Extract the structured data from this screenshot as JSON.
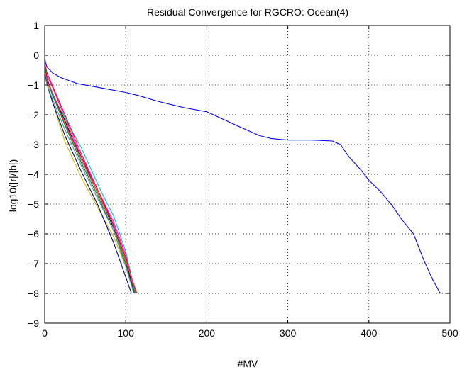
{
  "chart_data": {
    "type": "line",
    "title": "Residual Convergence for RGCRO: Ocean(4)",
    "xlabel": "#MV",
    "ylabel": "log10(|r|/|b|)",
    "xlim": [
      0,
      500
    ],
    "ylim": [
      -9,
      1
    ],
    "xticks": [
      0,
      100,
      200,
      300,
      400,
      500
    ],
    "yticks": [
      1,
      0,
      -1,
      -2,
      -3,
      -4,
      -5,
      -6,
      -7,
      -8,
      -9
    ],
    "xtick_labels": [
      "0",
      "100",
      "200",
      "300",
      "400",
      "500"
    ],
    "ytick_labels": [
      "1",
      "0",
      "−1",
      "−2",
      "−3",
      "−4",
      "−5",
      "−6",
      "−7",
      "−8",
      "−9"
    ],
    "grid": true,
    "grid_style": "dotted",
    "series": [
      {
        "color": "#0000ff",
        "x": [
          0,
          1,
          3,
          10,
          20,
          40,
          60,
          80,
          100,
          115,
          140,
          170,
          200,
          240,
          265,
          280,
          300,
          330,
          355,
          365,
          375,
          390,
          400,
          415,
          430,
          440,
          455,
          468,
          478,
          488
        ],
        "y": [
          0,
          -0.25,
          -0.4,
          -0.6,
          -0.75,
          -0.95,
          -1.05,
          -1.15,
          -1.25,
          -1.35,
          -1.55,
          -1.75,
          -1.9,
          -2.4,
          -2.7,
          -2.8,
          -2.85,
          -2.85,
          -2.88,
          -3.0,
          -3.4,
          -3.85,
          -4.2,
          -4.6,
          -5.1,
          -5.5,
          -6.0,
          -6.9,
          -7.5,
          -8.0
        ]
      },
      {
        "color": "#ff00ff",
        "x": [
          0,
          3,
          10,
          25,
          45,
          65,
          85,
          100,
          112
        ],
        "y": [
          -0.2,
          -0.7,
          -1.1,
          -2.1,
          -3.4,
          -4.5,
          -5.6,
          -6.7,
          -8.0
        ]
      },
      {
        "color": "#00bfbf",
        "x": [
          0,
          3,
          10,
          25,
          45,
          55,
          70,
          85,
          100,
          112
        ],
        "y": [
          -0.3,
          -0.8,
          -1.4,
          -2.1,
          -3.1,
          -3.7,
          -4.6,
          -5.4,
          -6.6,
          -8.0
        ]
      },
      {
        "color": "#bfbf00",
        "x": [
          0,
          3,
          10,
          25,
          45,
          65,
          85,
          100,
          110
        ],
        "y": [
          -0.5,
          -0.9,
          -1.6,
          -2.9,
          -4.1,
          -5.1,
          -6.1,
          -7.1,
          -8.0
        ]
      },
      {
        "color": "#000000",
        "x": [
          0,
          3,
          10,
          25,
          45,
          65,
          85,
          100,
          111
        ],
        "y": [
          -0.4,
          -0.8,
          -1.3,
          -2.2,
          -3.5,
          -4.6,
          -5.8,
          -6.9,
          -8.0
        ]
      },
      {
        "color": "#ff0000",
        "x": [
          0,
          3,
          10,
          25,
          45,
          65,
          85,
          100,
          113
        ],
        "y": [
          -0.3,
          -0.6,
          -1.05,
          -2.0,
          -3.3,
          -4.5,
          -5.7,
          -6.8,
          -8.0
        ]
      },
      {
        "color": "#008000",
        "x": [
          0,
          3,
          10,
          25,
          45,
          65,
          85,
          100,
          111
        ],
        "y": [
          -0.4,
          -0.85,
          -1.35,
          -2.35,
          -3.6,
          -4.7,
          -5.9,
          -7.0,
          -8.0
        ]
      },
      {
        "color": "#000080",
        "x": [
          0,
          3,
          10,
          25,
          45,
          65,
          85,
          98,
          107
        ],
        "y": [
          -0.6,
          -1.0,
          -1.6,
          -2.7,
          -3.9,
          -5.0,
          -6.3,
          -7.3,
          -8.0
        ]
      },
      {
        "color": "#800080",
        "x": [
          0,
          3,
          10,
          25,
          45,
          65,
          85,
          100,
          110
        ],
        "y": [
          -0.5,
          -0.9,
          -1.3,
          -2.3,
          -3.4,
          -4.6,
          -5.7,
          -6.9,
          -8.0
        ]
      },
      {
        "color": "#40a0a0",
        "x": [
          0,
          3,
          10,
          25,
          45,
          65,
          85,
          100,
          110
        ],
        "y": [
          -0.7,
          -1.0,
          -1.5,
          -2.5,
          -3.7,
          -4.8,
          -5.9,
          -7.1,
          -8.0
        ]
      },
      {
        "color": "#ff4040",
        "x": [
          0,
          3,
          10,
          25,
          45,
          65,
          85,
          100,
          114
        ],
        "y": [
          -0.5,
          -0.85,
          -1.3,
          -2.3,
          -3.5,
          -4.6,
          -5.75,
          -6.9,
          -8.0
        ]
      }
    ]
  }
}
